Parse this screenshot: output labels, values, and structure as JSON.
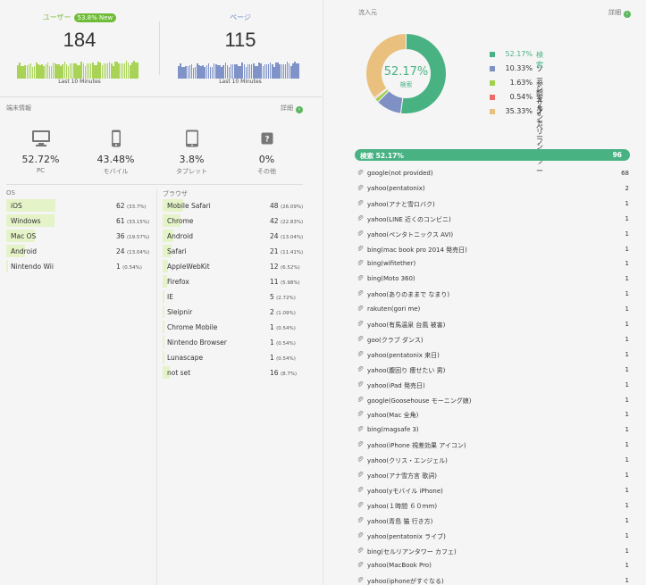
{
  "realtime": {
    "users": {
      "title": "ユーザー",
      "badge": "53.8% New",
      "value": "184",
      "label": "Last 10 Minutes"
    },
    "pages": {
      "title": "ページ",
      "value": "115",
      "label": "Last 10 Minutes"
    }
  },
  "devices": {
    "heading": "端末情報",
    "detail": "詳細",
    "items": [
      {
        "icon": "desktop-icon",
        "pct": "52.72%",
        "name": "PC"
      },
      {
        "icon": "mobile-icon",
        "pct": "43.48%",
        "name": "モバイル"
      },
      {
        "icon": "tablet-icon",
        "pct": "3.8%",
        "name": "タブレット"
      },
      {
        "icon": "unknown-icon",
        "pct": "0%",
        "name": "その他"
      }
    ]
  },
  "os": {
    "heading": "OS",
    "rows": [
      {
        "name": "iOS",
        "value": "62",
        "sub": "(33.7%)",
        "share": 0.337
      },
      {
        "name": "Windows",
        "value": "61",
        "sub": "(33.15%)",
        "share": 0.3315
      },
      {
        "name": "Mac OS",
        "value": "36",
        "sub": "(19.57%)",
        "share": 0.1957
      },
      {
        "name": "Android",
        "value": "24",
        "sub": "(13.04%)",
        "share": 0.1304
      },
      {
        "name": "Nintendo Wii",
        "value": "1",
        "sub": "(0.54%)",
        "share": 0.0054
      }
    ]
  },
  "browser": {
    "heading": "ブラウザ",
    "rows": [
      {
        "name": "Mobile Safari",
        "value": "48",
        "sub": "(26.09%)",
        "share": 0.2609
      },
      {
        "name": "Chrome",
        "value": "42",
        "sub": "(22.83%)",
        "share": 0.2283
      },
      {
        "name": "Android",
        "value": "24",
        "sub": "(13.04%)",
        "share": 0.1304
      },
      {
        "name": "Safari",
        "value": "21",
        "sub": "(11.41%)",
        "share": 0.1141
      },
      {
        "name": "AppleWebKit",
        "value": "12",
        "sub": "(6.52%)",
        "share": 0.0652
      },
      {
        "name": "Firefox",
        "value": "11",
        "sub": "(5.98%)",
        "share": 0.0598
      },
      {
        "name": "IE",
        "value": "5",
        "sub": "(2.72%)",
        "share": 0.0272
      },
      {
        "name": "Sleipnir",
        "value": "2",
        "sub": "(1.09%)",
        "share": 0.0109
      },
      {
        "name": "Chrome Mobile",
        "value": "1",
        "sub": "(0.54%)",
        "share": 0.0054
      },
      {
        "name": "Nintendo Browser",
        "value": "1",
        "sub": "(0.54%)",
        "share": 0.0054
      },
      {
        "name": "Lunascape",
        "value": "1",
        "sub": "(0.54%)",
        "share": 0.0054
      },
      {
        "name": "not set",
        "value": "16",
        "sub": "(8.7%)",
        "share": 0.087
      }
    ]
  },
  "sources": {
    "heading": "流入元",
    "detail": "詳細",
    "center_pct": "52.17%",
    "center_label": "検索",
    "segments": [
      {
        "pct": "52.17%",
        "label": "検索",
        "value": 52.17,
        "color": "#48b283"
      },
      {
        "pct": "10.33%",
        "label": "ソーシャル",
        "value": 10.33,
        "color": "#7e90c4"
      },
      {
        "pct": "1.63%",
        "label": "参照サイト",
        "value": 1.63,
        "color": "#9fd04e"
      },
      {
        "pct": "0.54%",
        "label": "キャンペーン",
        "value": 0.54,
        "color": "#ee6b6b"
      },
      {
        "pct": "35.33%",
        "label": "ノーリファラー",
        "value": 35.33,
        "color": "#e9c07d"
      }
    ],
    "search_bar": {
      "label": "検索 52.17%",
      "count": "96"
    },
    "keywords": [
      {
        "text": "google(not provided)",
        "count": "68"
      },
      {
        "text": "yahoo(pentatonix)",
        "count": "2"
      },
      {
        "text": "yahoo(アナと雪ロバク)",
        "count": "1"
      },
      {
        "text": "yahoo(LINE 近くのコンビニ)",
        "count": "1"
      },
      {
        "text": "yahoo(ペンタトニックス AVI)",
        "count": "1"
      },
      {
        "text": "bing(mac book pro 2014 発売日)",
        "count": "1"
      },
      {
        "text": "bing(wifitether)",
        "count": "1"
      },
      {
        "text": "bing(Moto 360)",
        "count": "1"
      },
      {
        "text": "yahoo(ありのままで なまり)",
        "count": "1"
      },
      {
        "text": "rakuten(gori me)",
        "count": "1"
      },
      {
        "text": "yahoo(有馬温泉 台風 被害)",
        "count": "1"
      },
      {
        "text": "goo(クラブ ダンス)",
        "count": "1"
      },
      {
        "text": "yahoo(pentatonix 来日)",
        "count": "1"
      },
      {
        "text": "yahoo(腹回り 痩せたい 男)",
        "count": "1"
      },
      {
        "text": "yahoo(iPad 発売日)",
        "count": "1"
      },
      {
        "text": "google(Goosehouse モーニング娘)",
        "count": "1"
      },
      {
        "text": "yahoo(Mac 全角)",
        "count": "1"
      },
      {
        "text": "bing(magsafe 3)",
        "count": "1"
      },
      {
        "text": "yahoo(iPhone 視差効果 アイコン)",
        "count": "1"
      },
      {
        "text": "yahoo(クリス・エンジェル)",
        "count": "1"
      },
      {
        "text": "yahoo(アナ雪方言 歌詞)",
        "count": "1"
      },
      {
        "text": "yahoo(yモバイル iPhone)",
        "count": "1"
      },
      {
        "text": "yahoo(１時間 ６０ｍｍ)",
        "count": "1"
      },
      {
        "text": "yahoo(青島 猫 行き方)",
        "count": "1"
      },
      {
        "text": "yahoo(pentatonix ライブ)",
        "count": "1"
      },
      {
        "text": "bing(セルリアンタワー カフェ)",
        "count": "1"
      },
      {
        "text": "yahoo(MacBook Pro)",
        "count": "1"
      },
      {
        "text": "yahoo(iphoneがすぐなる)",
        "count": "1"
      }
    ]
  },
  "colors": {
    "green": "#7dbb3a",
    "blue": "#7f93c8",
    "search": "#48b283",
    "highlight": "#e4f3c8"
  }
}
